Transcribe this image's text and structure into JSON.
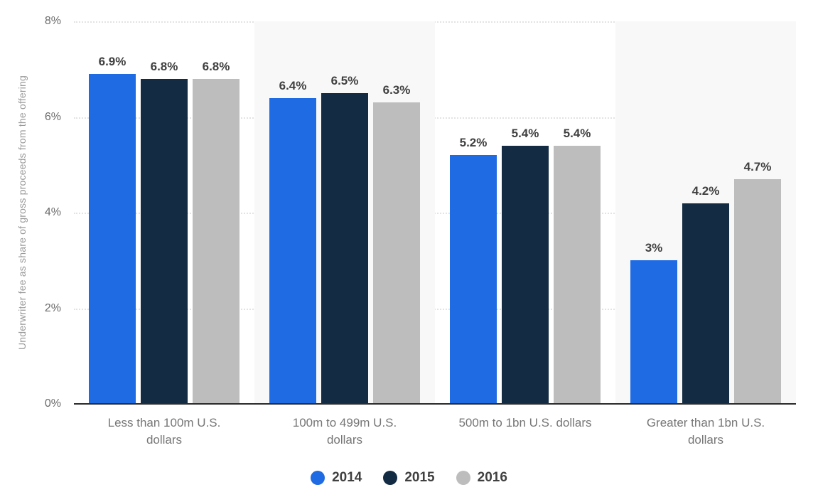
{
  "chart_data": {
    "type": "bar",
    "title": "",
    "ylabel": "Underwriter fee as share of gross proceeds from the offering",
    "xlabel": "",
    "categories": [
      "Less than 100m U.S. dollars",
      "100m to 499m U.S. dollars",
      "500m to 1bn U.S. dollars",
      "Greater than 1bn U.S. dollars"
    ],
    "series": [
      {
        "name": "2014",
        "color": "#1f6be4",
        "values": [
          6.9,
          6.4,
          5.2,
          3.0
        ],
        "labels": [
          "6.9%",
          "6.4%",
          "5.2%",
          "3%"
        ]
      },
      {
        "name": "2015",
        "color": "#132b43",
        "values": [
          6.8,
          6.5,
          5.4,
          4.2
        ],
        "labels": [
          "6.8%",
          "6.5%",
          "5.4%",
          "4.2%"
        ]
      },
      {
        "name": "2016",
        "color": "#bdbdbd",
        "values": [
          6.8,
          6.3,
          5.4,
          4.7
        ],
        "labels": [
          "6.8%",
          "6.3%",
          "5.4%",
          "4.7%"
        ]
      }
    ],
    "ylim": [
      0,
      8
    ],
    "yticks": [
      {
        "label": "0%",
        "value": 0
      },
      {
        "label": "2%",
        "value": 2
      },
      {
        "label": "4%",
        "value": 4
      },
      {
        "label": "6%",
        "value": 6
      },
      {
        "label": "8%",
        "value": 8
      }
    ],
    "grid": "horizontal-dotted",
    "legend_position": "bottom-center",
    "band_color": "#f8f8f8",
    "banded_category_indexes": [
      1,
      3
    ]
  }
}
